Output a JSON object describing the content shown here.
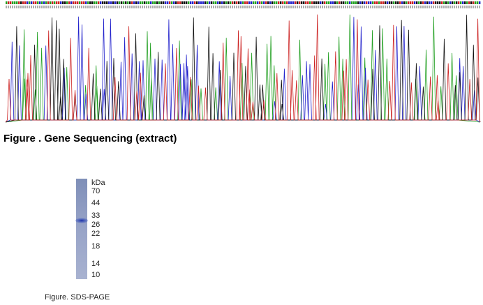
{
  "sequencing_figure": {
    "caption": "Figure . Gene Sequencing (extract)"
  },
  "sds_page_figure": {
    "unit_label": "kDa",
    "markers": [
      70,
      44,
      33,
      26,
      22,
      18,
      14,
      10
    ],
    "caption": "Figure. SDS-PAGE"
  }
}
